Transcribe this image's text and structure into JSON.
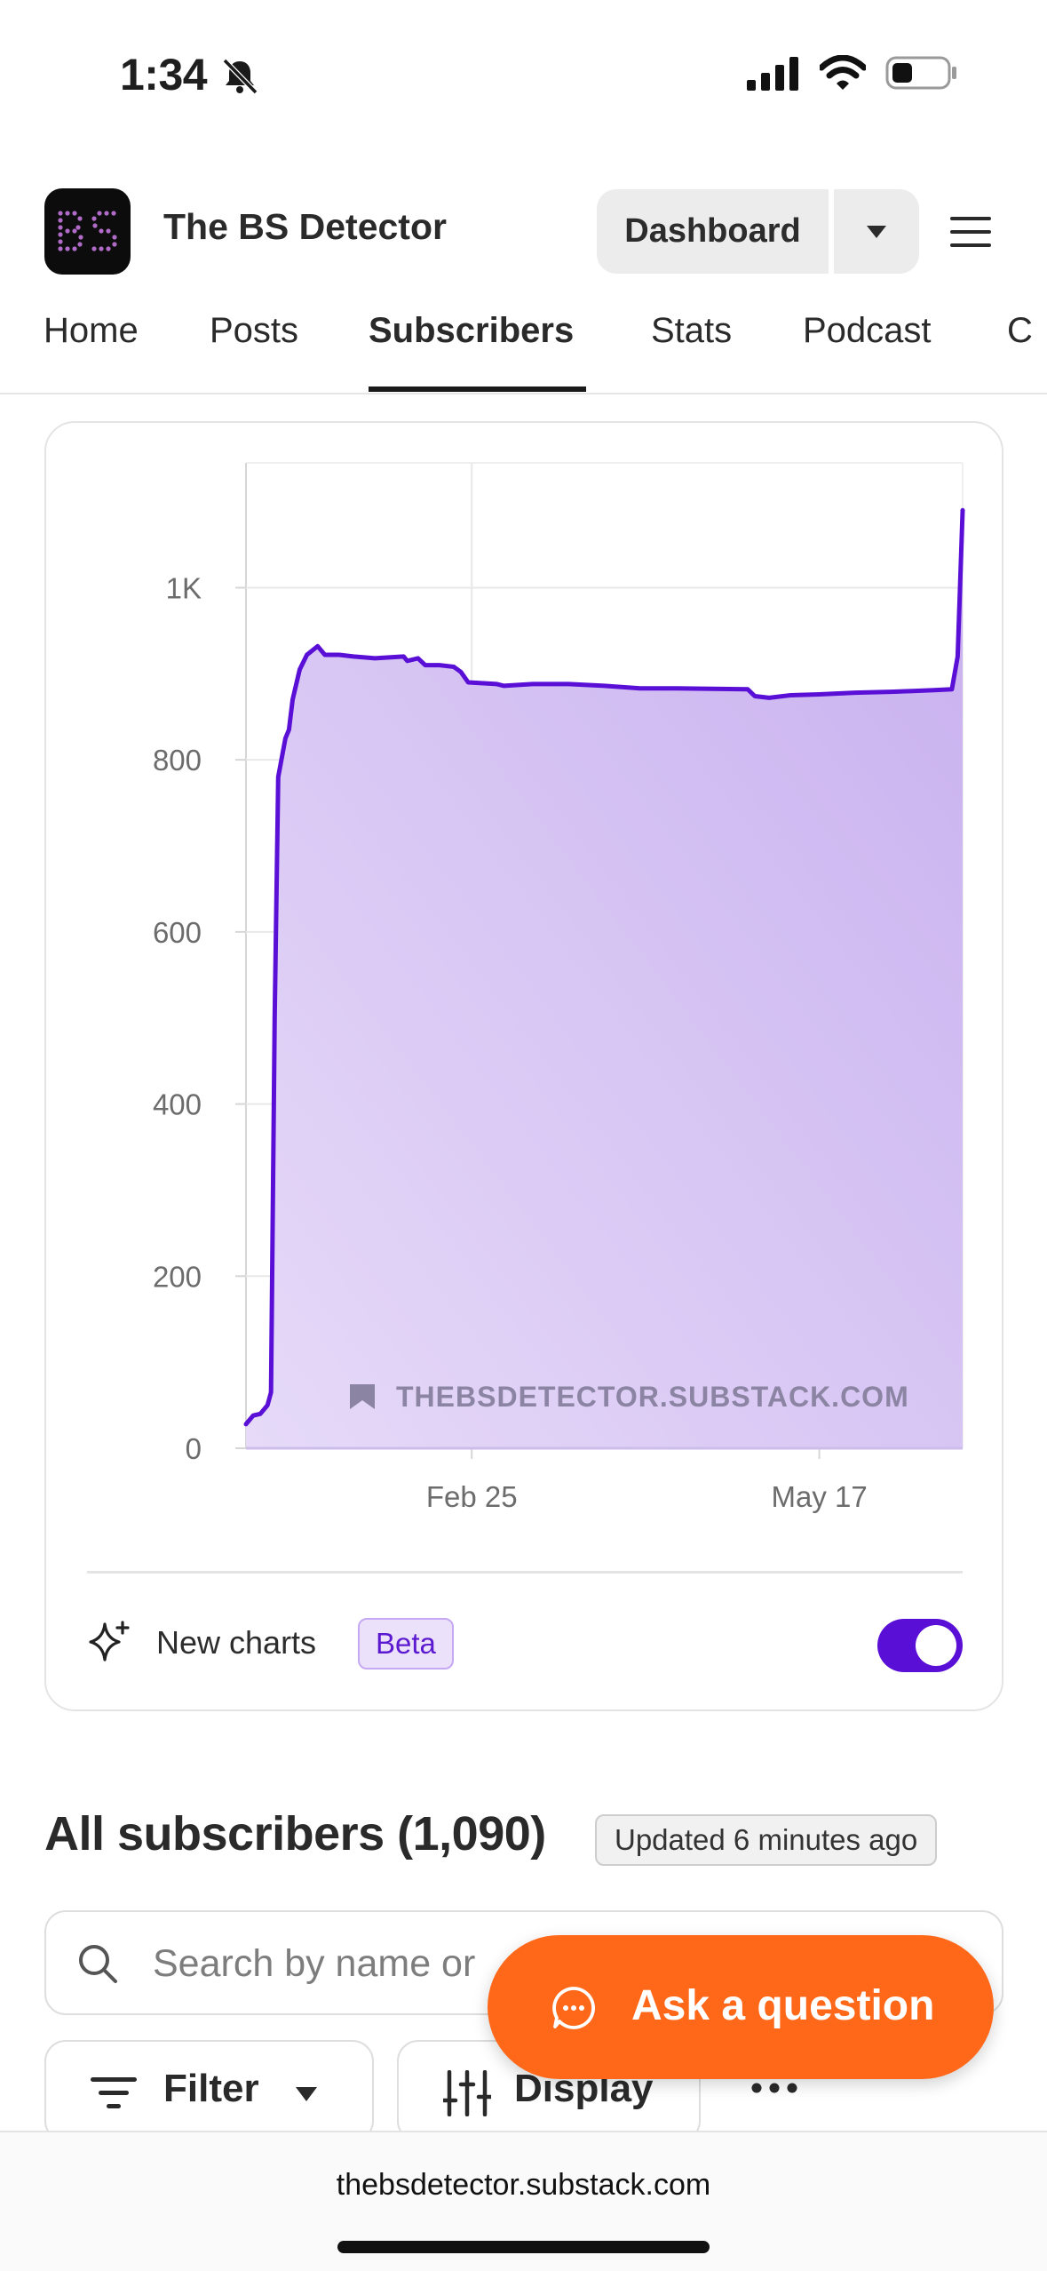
{
  "status_bar": {
    "time": "1:34",
    "icons": [
      "bell-slash-icon",
      "cellular-signal-icon",
      "wifi-icon",
      "battery-icon"
    ]
  },
  "header": {
    "logo_text": "BS",
    "publication_name": "The BS Detector",
    "dashboard_label": "Dashboard",
    "menu_icon": "hamburger-menu-icon"
  },
  "tabs": [
    {
      "label": "Home",
      "active": false
    },
    {
      "label": "Posts",
      "active": false
    },
    {
      "label": "Subscribers",
      "active": true
    },
    {
      "label": "Stats",
      "active": false
    },
    {
      "label": "Podcast",
      "active": false
    },
    {
      "label": "C",
      "active": false
    }
  ],
  "chart_data": {
    "type": "area",
    "watermark": "THEBSDETECTOR.SUBSTACK.COM",
    "y_ticks": [
      "1K",
      "800",
      "600",
      "400",
      "200",
      "0"
    ],
    "y_tick_values": [
      1000,
      800,
      600,
      400,
      200,
      0
    ],
    "ylim": [
      0,
      1145
    ],
    "x_ticks": [
      "Feb 25",
      "May 17"
    ],
    "x_tick_positions": [
      0.315,
      0.8
    ],
    "grid": true,
    "series": [
      {
        "color": "#5a0fd6",
        "fill": "#c9b3f0",
        "points": [
          [
            0.0,
            28
          ],
          [
            0.01,
            38
          ],
          [
            0.02,
            40
          ],
          [
            0.03,
            50
          ],
          [
            0.035,
            65
          ],
          [
            0.04,
            500
          ],
          [
            0.045,
            780
          ],
          [
            0.055,
            825
          ],
          [
            0.06,
            835
          ],
          [
            0.065,
            870
          ],
          [
            0.075,
            905
          ],
          [
            0.085,
            922
          ],
          [
            0.1,
            932
          ],
          [
            0.11,
            922
          ],
          [
            0.13,
            922
          ],
          [
            0.15,
            920
          ],
          [
            0.18,
            918
          ],
          [
            0.22,
            920
          ],
          [
            0.225,
            915
          ],
          [
            0.24,
            918
          ],
          [
            0.25,
            910
          ],
          [
            0.27,
            910
          ],
          [
            0.29,
            908
          ],
          [
            0.3,
            902
          ],
          [
            0.31,
            890
          ],
          [
            0.35,
            888
          ],
          [
            0.36,
            886
          ],
          [
            0.4,
            888
          ],
          [
            0.45,
            888
          ],
          [
            0.5,
            886
          ],
          [
            0.55,
            883
          ],
          [
            0.6,
            883
          ],
          [
            0.7,
            882
          ],
          [
            0.71,
            874
          ],
          [
            0.73,
            872
          ],
          [
            0.76,
            875
          ],
          [
            0.8,
            876
          ],
          [
            0.85,
            878
          ],
          [
            0.9,
            879
          ],
          [
            0.93,
            880
          ],
          [
            0.96,
            881
          ],
          [
            0.985,
            882
          ],
          [
            0.993,
            920
          ],
          [
            1.0,
            1090
          ]
        ]
      }
    ]
  },
  "chart_footer": {
    "new_charts_label": "New charts",
    "beta_badge": "Beta",
    "toggle_on": true
  },
  "subscribers": {
    "title": "All subscribers (1,090)",
    "updated_badge": "Updated 6 minutes ago",
    "search_placeholder": "Search by name or",
    "filter_label": "Filter",
    "display_label": "Display"
  },
  "ask_button": {
    "label": "Ask a question",
    "color": "#ff6719"
  },
  "browser": {
    "url": "thebsdetector.substack.com"
  }
}
